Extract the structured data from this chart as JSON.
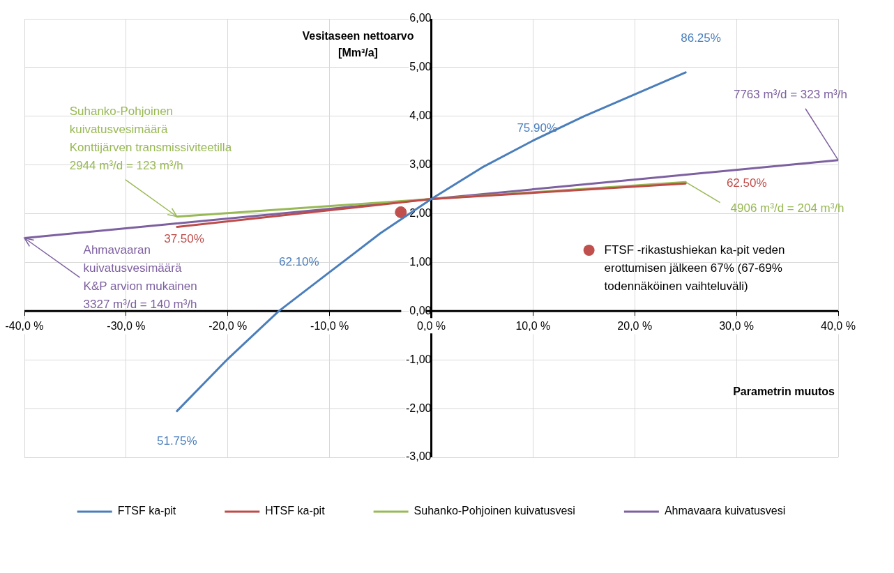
{
  "chart_data": {
    "type": "line",
    "xlabel": "Parametrin muutos",
    "ylabel": "Vesitaseen nettoarvo\n[Mm³/a]",
    "xlim": [
      -40,
      40
    ],
    "xticks": [
      {
        "value": -40,
        "label": "-40,0 %"
      },
      {
        "value": -30,
        "label": "-30,0 %"
      },
      {
        "value": -20,
        "label": "-20,0 %"
      },
      {
        "value": -10,
        "label": "-10,0 %"
      },
      {
        "value": 0,
        "label": "0,0 %"
      },
      {
        "value": 10,
        "label": "10,0 %"
      },
      {
        "value": 20,
        "label": "20,0 %"
      },
      {
        "value": 30,
        "label": "30,0 %"
      },
      {
        "value": 40,
        "label": "40,0 %"
      }
    ],
    "ylim": [
      -3,
      6
    ],
    "yticks": [
      {
        "value": -3,
        "label": "-3,00"
      },
      {
        "value": -2,
        "label": "-2,00"
      },
      {
        "value": -1,
        "label": "-1,00"
      },
      {
        "value": 0,
        "label": "0,00"
      },
      {
        "value": 1,
        "label": "1,00"
      },
      {
        "value": 2,
        "label": "2,00"
      },
      {
        "value": 3,
        "label": "3,00"
      },
      {
        "value": 4,
        "label": "4,00"
      },
      {
        "value": 5,
        "label": "5,00"
      },
      {
        "value": 6,
        "label": "6,00"
      }
    ],
    "grid": true,
    "legend": "bottom",
    "marker": "none",
    "line_style": "solid",
    "series": [
      {
        "name": "FTSF ka-pit",
        "color": "#4a7ebb",
        "x": [
          -25,
          -20,
          -15,
          -10,
          -5,
          0,
          5,
          10,
          15,
          20,
          25
        ],
        "values": [
          -2.05,
          -0.98,
          0.0,
          0.8,
          1.6,
          2.3,
          2.95,
          3.5,
          4.0,
          4.45,
          4.9
        ]
      },
      {
        "name": "HTSF ka-pit",
        "color": "#be4b48",
        "x": [
          -25,
          0,
          25
        ],
        "values": [
          1.73,
          2.3,
          2.62
        ]
      },
      {
        "name": "Suhanko-Pohjoinen kuivatusvesi",
        "color": "#98b954",
        "x": [
          -25,
          0,
          25
        ],
        "values": [
          1.94,
          2.3,
          2.65
        ]
      },
      {
        "name": "Ahmavaara kuivatusvesi",
        "color": "#7d60a0",
        "x": [
          -40,
          0,
          40
        ],
        "values": [
          1.5,
          2.3,
          3.1
        ]
      },
      {
        "name": "FTSF -rikastushiekan ka-pit veden erottumisen jälkeen 67% (67-69% todennäköinen vaihteluväli)",
        "type": "scatter",
        "marker": "circle",
        "color": "#c0504d",
        "x": [
          -3
        ],
        "values": [
          2.03
        ]
      }
    ],
    "annotations": [
      "86.25%",
      "75.90%",
      "62.10%",
      "51.75%",
      "37.50%",
      "62.50%",
      {
        "text": "Suhanko-Pohjoinen\nkuivatusvesimäärä\nKonttijärven transmissiviteetilla\n2944 m³/d = 123 m³/h",
        "x": -25,
        "y": 1.94
      },
      {
        "text": "4906 m³/d = 204 m³/h",
        "x": 25,
        "y": 2.65
      },
      {
        "text": "7763 m³/d = 323 m³/h",
        "x": 40,
        "y": 3.1
      },
      {
        "text": "Ahmavaaran\nkuivatusvesimäärä\nK&P arvion mukainen\n3327 m³/d = 140 m³/h",
        "x": -40,
        "y": 1.5
      }
    ]
  }
}
